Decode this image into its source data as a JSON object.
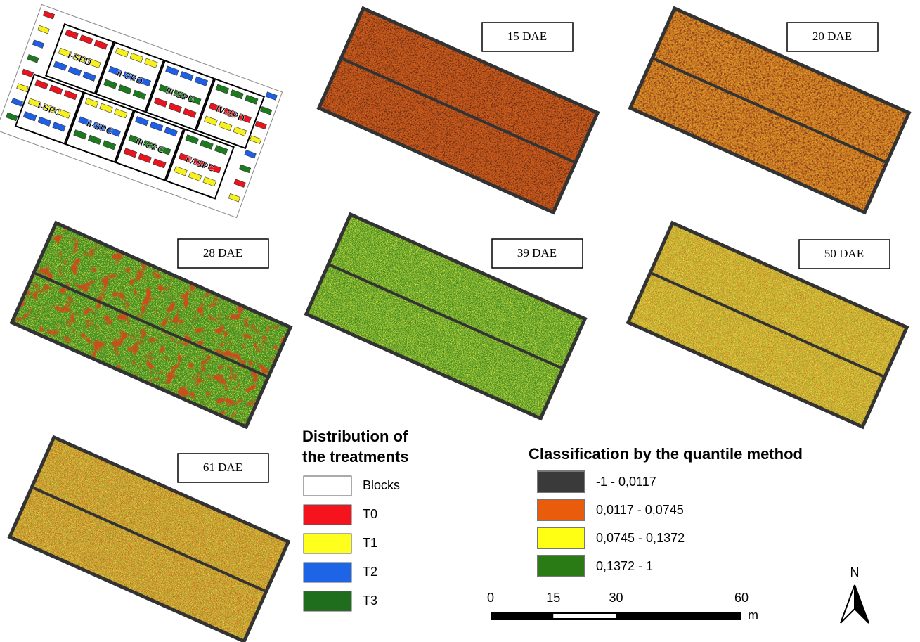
{
  "treatment_map": {
    "blocks": [
      "I-SPD",
      "II-SPD",
      "III-SPD",
      "IV-SPD",
      "I-SPC",
      "II-SPC",
      "III-SPC",
      "IV-SPC"
    ]
  },
  "panels": [
    "15 DAE",
    "20 DAE",
    "28 DAE",
    "39 DAE",
    "50 DAE",
    "61 DAE"
  ],
  "treatment_legend": {
    "title": [
      "Distribution of",
      "the treatments"
    ],
    "items": [
      "Blocks",
      "T0",
      "T1",
      "T2",
      "T3"
    ]
  },
  "class_legend": {
    "title": "Classification by the quantile method",
    "items": [
      "-1 - 0,0117",
      "0,0117 - 0,0745",
      "0,0745 - 0,1372",
      "0,1372 - 1"
    ]
  },
  "scale_bar": {
    "ticks": [
      0,
      15,
      30,
      60
    ],
    "unit": "m"
  },
  "north": "N"
}
